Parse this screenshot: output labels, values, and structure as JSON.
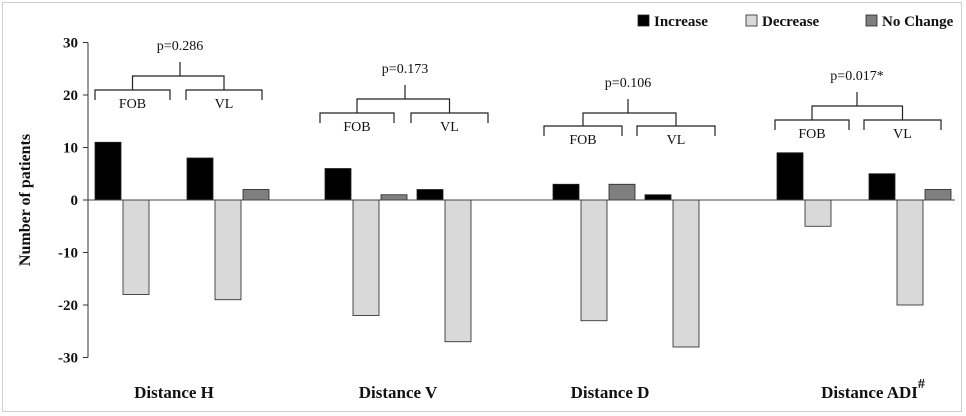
{
  "chart_data": {
    "type": "bar",
    "ylabel": "Number of patients",
    "ylim": [
      -30,
      30
    ],
    "yticks": [
      30,
      20,
      10,
      0,
      -10,
      -20,
      -30
    ],
    "legend": {
      "position": "top-right"
    },
    "series": [
      {
        "name": "Increase",
        "color": "#000000"
      },
      {
        "name": "Decrease",
        "color": "#d9d9d9"
      },
      {
        "name": "No Change",
        "color": "#7f7f7f"
      }
    ],
    "categories": [
      {
        "label": "Distance H",
        "superscript": "",
        "p_value": "p=0.286",
        "groups": [
          {
            "label": "FOB",
            "increase": 11,
            "decrease": -18,
            "no_change": 0
          },
          {
            "label": "VL",
            "increase": 8,
            "decrease": -19,
            "no_change": 2
          }
        ]
      },
      {
        "label": "Distance V",
        "superscript": "",
        "p_value": "p=0.173",
        "groups": [
          {
            "label": "FOB",
            "increase": 6,
            "decrease": -22,
            "no_change": 1
          },
          {
            "label": "VL",
            "increase": 2,
            "decrease": -27,
            "no_change": 0
          }
        ]
      },
      {
        "label": "Distance D",
        "superscript": "",
        "p_value": "p=0.106",
        "groups": [
          {
            "label": "FOB",
            "increase": 3,
            "decrease": -23,
            "no_change": 3
          },
          {
            "label": "VL",
            "increase": 1,
            "decrease": -28,
            "no_change": 0
          }
        ]
      },
      {
        "label": "Distance ADI",
        "superscript": "#",
        "p_value": "p=0.017*",
        "groups": [
          {
            "label": "FOB",
            "increase": 9,
            "decrease": -5,
            "no_change": 0
          },
          {
            "label": "VL",
            "increase": 5,
            "decrease": -20,
            "no_change": 2
          }
        ]
      }
    ]
  }
}
